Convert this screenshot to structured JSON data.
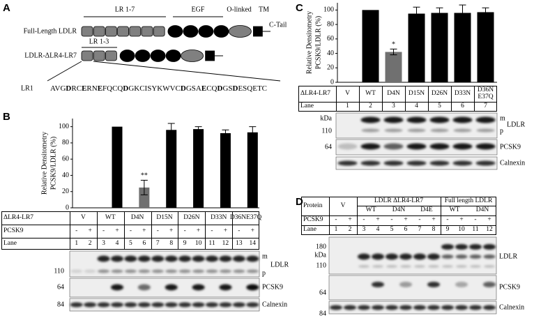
{
  "panel_labels": {
    "a": "A",
    "b": "B",
    "c": "C",
    "d": "D"
  },
  "panel_a": {
    "lr_1_7": "LR 1-7",
    "egf": "EGF",
    "o_linked": "O-linked",
    "tm": "TM",
    "c_tail": "C-Tail",
    "full_length": "Full-Length LDLR",
    "deletion": "LDLR-ΔLR4-LR7",
    "lr_1_3": "LR 1-3",
    "lr1": "LR1",
    "sequence": [
      "AVG",
      "D",
      "RC",
      "E",
      "RN",
      "E",
      "FQCQ",
      "D",
      "GKCISYKWVC",
      "D",
      "GSA",
      "E",
      "CQ",
      "D",
      "GS",
      "D",
      "ESQETC"
    ]
  },
  "chart_data": [
    {
      "type": "bar",
      "ylabel": [
        "Relative Densitometry",
        "PCSK9/LDLR (%)"
      ],
      "categories": [
        null,
        null,
        null,
        null,
        null,
        null,
        null
      ],
      "values": [
        null,
        100,
        25,
        96,
        97,
        92,
        93
      ],
      "errors": [
        null,
        null,
        9,
        8,
        3,
        4,
        7
      ],
      "colors": [
        null,
        "#000000",
        "#707070",
        "#000000",
        "#000000",
        "#000000",
        "#000000"
      ],
      "annotations": [
        null,
        null,
        "**",
        null,
        null,
        null,
        null
      ],
      "ylim": [
        0,
        110
      ],
      "yticks": [
        0,
        20,
        40,
        60,
        80,
        100
      ]
    },
    {
      "type": "bar",
      "ylabel": [
        "Relative Densitometry",
        "PCSK9/LDLR (%)"
      ],
      "categories": [
        null,
        null,
        null,
        null,
        null,
        null,
        null
      ],
      "values": [
        null,
        100,
        42,
        95,
        96,
        96,
        97
      ],
      "errors": [
        null,
        null,
        4,
        9,
        7,
        11,
        6
      ],
      "colors": [
        null,
        "#000000",
        "#707070",
        "#000000",
        "#000000",
        "#000000",
        "#000000"
      ],
      "annotations": [
        null,
        null,
        "*",
        null,
        null,
        null,
        null
      ],
      "ylim": [
        0,
        110
      ],
      "yticks": [
        0,
        20,
        40,
        60,
        80,
        100
      ]
    }
  ],
  "panel_b": {
    "table": {
      "row_header": "ΔLR4-LR7",
      "groups": [
        "V",
        "WT",
        "D4N",
        "D15N",
        "D26N",
        "D33N",
        "D36NE37Q"
      ],
      "pcsk9_header": "PCSK9",
      "pcsk9": [
        "-",
        "+",
        "-",
        "+",
        "-",
        "+",
        "-",
        "+",
        "-",
        "+",
        "-",
        "+",
        "-",
        "+"
      ],
      "lane_header": "Lane",
      "lanes": [
        1,
        2,
        3,
        4,
        5,
        6,
        7,
        8,
        9,
        10,
        11,
        12,
        13,
        14
      ]
    },
    "blot": {
      "markers": [
        "110",
        "64",
        "84"
      ],
      "mature": "m",
      "precursor": "p",
      "ldlr": "LDLR",
      "pcsk9": "PCSK9",
      "calnexin": "Calnexin"
    }
  },
  "panel_c": {
    "table": {
      "row_header": "ΔLR4-LR7",
      "groups": [
        "V",
        "WT",
        "D4N",
        "D15N",
        "D26N",
        "D33N",
        "D36N E37Q"
      ],
      "lane_header": "Lane",
      "lanes": [
        1,
        2,
        3,
        4,
        5,
        6,
        7
      ]
    },
    "blot": {
      "kda": "kDa",
      "markers": [
        "110",
        "64"
      ],
      "mature": "m",
      "precursor": "p",
      "ldlr": "LDLR",
      "pcsk9": "PCSK9",
      "calnexin": "Calnexin"
    }
  },
  "panel_d": {
    "table": {
      "protein_header": "Protein",
      "groups": [
        "V",
        "LDLR ΔLR4-LR7",
        "Full length LDLR"
      ],
      "subgroups": [
        "WT",
        "D4N",
        "D4E",
        "WT",
        "D4N"
      ],
      "pcsk9_header": "PCSK9",
      "pcsk9": [
        "-",
        "+",
        "-",
        "+",
        "-",
        "+",
        "-",
        "+",
        "-",
        "+",
        "-",
        "+"
      ],
      "lane_header": "Lane",
      "lanes": [
        1,
        2,
        3,
        4,
        5,
        6,
        7,
        8,
        9,
        10,
        11,
        12
      ]
    },
    "blot": {
      "markers": [
        "180",
        "110",
        "64",
        "84"
      ],
      "kda": "kDa",
      "ldlr": "LDLR",
      "pcsk9": "PCSK9",
      "calnexin": "Calnexin"
    }
  }
}
